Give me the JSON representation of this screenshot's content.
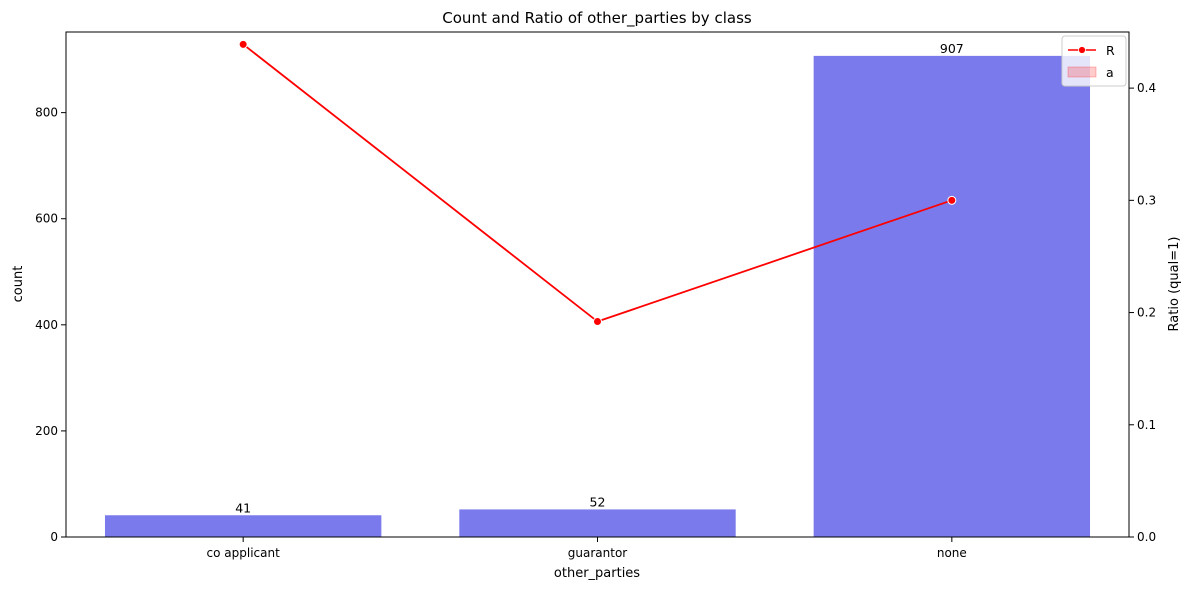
{
  "chart_data": {
    "type": "bar",
    "title": "Count and Ratio of other_parties by class",
    "xlabel": "other_parties",
    "ylabel": "count",
    "y2label": "Ratio (qual=1)",
    "categories": [
      "co applicant",
      "guarantor",
      "none"
    ],
    "series": [
      {
        "type": "bar",
        "values": [
          41,
          52,
          907
        ],
        "data_labels": [
          "41",
          "52",
          "907"
        ],
        "color": "#7a7aec"
      },
      {
        "type": "line",
        "axis": "right",
        "values": [
          0.439,
          0.192,
          0.3
        ],
        "color": "#ff0000"
      }
    ],
    "ylim": [
      0,
      952
    ],
    "y2lim": [
      0,
      0.45
    ],
    "yticks": [
      0,
      200,
      400,
      600,
      800
    ],
    "y2ticks": [
      0.0,
      0.1,
      0.2,
      0.3,
      0.4
    ],
    "ytick_labels": [
      "0",
      "200",
      "400",
      "600",
      "800"
    ],
    "y2tick_labels": [
      "0.0",
      "0.1",
      "0.2",
      "0.3",
      "0.4"
    ],
    "legend": {
      "position": "top-right",
      "entries": [
        "R",
        "a"
      ]
    },
    "grid": false
  }
}
